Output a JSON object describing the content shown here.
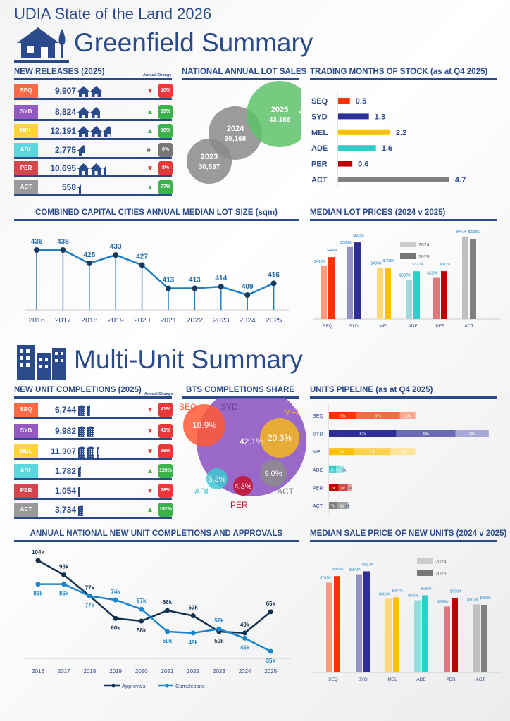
{
  "header": {
    "title": "UDIA State of the Land 2026",
    "greenfield_title": "Greenfield Summary",
    "multiunit_title": "Multi-Unit Summary"
  },
  "colors": {
    "brand": "#2b4a8c",
    "up": "#39b34a",
    "down": "#e8383a",
    "flat": "#777777"
  },
  "new_releases": {
    "title": "NEW RELEASES (2025)",
    "change_label": "Annual Change",
    "rows": [
      {
        "region": "SEQ",
        "value": "9,907",
        "icons": 2,
        "dir": "down",
        "change": "10%",
        "color": "#ff6a45"
      },
      {
        "region": "SYD",
        "value": "8,824",
        "icons": 1.8,
        "dir": "up",
        "change": "19%",
        "color": "#9459c0"
      },
      {
        "region": "MEL",
        "value": "12,191",
        "icons": 2.7,
        "dir": "up",
        "change": "16%",
        "color": "#ffd23f"
      },
      {
        "region": "ADL",
        "value": "2,775",
        "icons": 0.6,
        "dir": "flat",
        "change": "0%",
        "color": "#5bd8de"
      },
      {
        "region": "PER",
        "value": "10,695",
        "icons": 2.3,
        "dir": "down",
        "change": "8%",
        "color": "#d7444a"
      },
      {
        "region": "ACT",
        "value": "558",
        "icons": 0.3,
        "dir": "up",
        "change": "77%",
        "color": "#9a9a9a"
      }
    ]
  },
  "lot_sales": {
    "title": "NATIONAL ANNUAL LOT SALES",
    "bubbles": [
      {
        "year": "2023",
        "value": "30,837",
        "color": "#8a8a8a"
      },
      {
        "year": "2024",
        "value": "39,168",
        "color": "#8a8a8a"
      },
      {
        "year": "2025",
        "value": "43,186",
        "color": "#5ec26a",
        "trend": "up"
      }
    ]
  },
  "months_stock": {
    "title": "TRADING MONTHS OF STOCK (as at Q4 2025)",
    "rows": [
      {
        "region": "SEQ",
        "value": 0.5,
        "label": "0.5",
        "color": "#ff3300"
      },
      {
        "region": "SYD",
        "value": 1.3,
        "label": "1.3",
        "color": "#2e2e99"
      },
      {
        "region": "MEL",
        "value": 2.2,
        "label": "2.2",
        "color": "#ffc000"
      },
      {
        "region": "ADE",
        "value": 1.6,
        "label": "1.6",
        "color": "#33cccc"
      },
      {
        "region": "PER",
        "value": 0.6,
        "label": "0.6",
        "color": "#c00000"
      },
      {
        "region": "ACT",
        "value": 4.7,
        "label": "4.7",
        "color": "#808080"
      }
    ]
  },
  "lot_size": {
    "title": "COMBINED CAPITAL CITIES ANNUAL MEDIAN LOT SIZE (sqm)"
  },
  "lot_prices": {
    "title": "MEDIAN LOT PRICES (2024 v 2025)"
  },
  "unit_completions": {
    "title": "NEW UNIT COMPLETIONS (2025)",
    "change_label": "Annual Change",
    "rows": [
      {
        "region": "SEQ",
        "value": "6,744",
        "icons": 1.4,
        "dir": "down",
        "change": "41%",
        "color": "#ff6a45"
      },
      {
        "region": "SYD",
        "value": "9,982",
        "icons": 2,
        "dir": "down",
        "change": "41%",
        "color": "#9459c0"
      },
      {
        "region": "MEL",
        "value": "11,307",
        "icons": 2.3,
        "dir": "down",
        "change": "16%",
        "color": "#ffd23f"
      },
      {
        "region": "ADL",
        "value": "1,782",
        "icons": 0.4,
        "dir": "up",
        "change": "120%",
        "color": "#5bd8de"
      },
      {
        "region": "PER",
        "value": "1,054",
        "icons": 0.25,
        "dir": "down",
        "change": "26%",
        "color": "#d7444a"
      },
      {
        "region": "ACT",
        "value": "3,734",
        "icons": 0.7,
        "dir": "up",
        "change": "162%",
        "color": "#9a9a9a"
      }
    ]
  },
  "bts": {
    "title": "BTS COMPLETIONS SHARE",
    "items": [
      {
        "region": "SYD",
        "share": "42.1%",
        "color": "#8a4fbf"
      },
      {
        "region": "SEQ",
        "share": "18.9%",
        "color": "#ff5a36"
      },
      {
        "region": "MEL",
        "share": "20.3%",
        "color": "#f5b71f"
      },
      {
        "region": "ADL",
        "share": "5.3%",
        "color": "#3cc8d0"
      },
      {
        "region": "PER",
        "share": "4.3%",
        "color": "#c8102e"
      },
      {
        "region": "ACT",
        "share": "9.0%",
        "color": "#8c8c8c"
      }
    ]
  },
  "pipeline": {
    "title": "UNITS PIPELINE (as at Q4 2025)"
  },
  "unit_approvals": {
    "title": "ANNUAL NATIONAL NEW UNIT COMPLETIONS AND APPROVALS"
  },
  "unit_prices": {
    "title": "MEDIAN SALE PRICE OF NEW UNITS (2024 v 2025)"
  },
  "chart_data": [
    {
      "id": "lot_size",
      "type": "line",
      "title": "COMBINED CAPITAL CITIES ANNUAL MEDIAN LOT SIZE (sqm)",
      "x": [
        "2016",
        "2017",
        "2018",
        "2019",
        "2020",
        "2021",
        "2022",
        "2023",
        "2024",
        "2025"
      ],
      "values": [
        436,
        436,
        428,
        433,
        427,
        413,
        413,
        414,
        409,
        416
      ],
      "color": "#1f7fc2"
    },
    {
      "id": "lot_prices",
      "type": "bar",
      "title": "MEDIAN LOT PRICES (2024 v 2025)",
      "categories": [
        "SEQ",
        "SYD",
        "MEL",
        "ADE",
        "PER",
        "ACT"
      ],
      "series": [
        {
          "name": "2024",
          "values": [
            417,
            568,
            403,
            307,
            325,
            652
          ],
          "labels": [
            "$417K",
            "$568K",
            "$403K",
            "$307K",
            "$325K",
            "$652K"
          ],
          "colors": [
            "#ff9980",
            "#9490c8",
            "#ffd978",
            "#90e0e0",
            "#e07880",
            "#c0c0c0"
          ],
          "legend_color": "#cccccc"
        },
        {
          "name": "2025",
          "values": [
            488,
            605,
            405,
            377,
            377,
            633
          ],
          "labels": [
            "$488K",
            "$605K",
            "$405K",
            "$377K",
            "$377K",
            "$633K"
          ],
          "colors": [
            "#ff3300",
            "#2e2e99",
            "#ffc000",
            "#33cccc",
            "#c00000",
            "#808080"
          ],
          "legend_color": "#777777"
        }
      ]
    },
    {
      "id": "pipeline",
      "type": "bar",
      "title": "UNITS PIPELINE (as at Q4 2025)",
      "categories": [
        "SEQ",
        "SYD",
        "MEL",
        "ADE",
        "PER",
        "ACT"
      ],
      "series": [
        {
          "values": [
            23,
            57,
            21,
            6,
            8,
            7
          ]
        },
        {
          "values": [
            37,
            50,
            31,
            4,
            8,
            8
          ]
        },
        {
          "values": [
            13,
            28,
            21,
            3,
            3,
            2
          ]
        }
      ],
      "colors": [
        [
          "#ff3300",
          "#ff6a45",
          "#ffa590"
        ],
        [
          "#2e2e99",
          "#6a6ab8",
          "#a8a8d8"
        ],
        [
          "#ffc000",
          "#ffd04a",
          "#ffe398"
        ],
        [
          "#33cccc",
          "#70dcdc",
          "#a8eaea"
        ],
        [
          "#c00000",
          "#d84a4a",
          "#eaa0a0"
        ],
        [
          "#808080",
          "#a0a0a0",
          "#c8c8c8"
        ]
      ]
    },
    {
      "id": "unit_approvals",
      "type": "line",
      "title": "ANNUAL NATIONAL NEW UNIT COMPLETIONS AND APPROVALS",
      "x": [
        "2016",
        "2017",
        "2018",
        "2019",
        "2020",
        "2021",
        "2022",
        "2023",
        "2024",
        "2025"
      ],
      "series": [
        {
          "name": "Approvals",
          "values": [
            104,
            93,
            77,
            60,
            58,
            66,
            62,
            50,
            49,
            65
          ],
          "color": "#10304f"
        },
        {
          "name": "Completions",
          "values": [
            86,
            86,
            77,
            74,
            67,
            50,
            49,
            52,
            45,
            35
          ],
          "color": "#1a85cc"
        }
      ]
    },
    {
      "id": "unit_prices",
      "type": "bar",
      "title": "MEDIAN SALE PRICE OF NEW UNITS (2024 v 2025)",
      "categories": [
        "SEQ",
        "SYD",
        "MEL",
        "ADE",
        "PER",
        "ACT"
      ],
      "series": [
        {
          "name": "2024",
          "values": [
            797,
            872,
            654,
            640,
            585,
            603
          ],
          "labels": [
            "$797K",
            "$872K",
            "$654K",
            "$640K",
            "$585K",
            "$603K"
          ],
          "colors": [
            "#ff9980",
            "#9490c8",
            "#ffd978",
            "#90e0e0",
            "#e07880",
            "#c0c0c0"
          ],
          "legend_color": "#cccccc"
        },
        {
          "name": "2025",
          "values": [
            855,
            897,
            667,
            685,
            660,
            600
          ],
          "labels": [
            "$855K",
            "$897K",
            "$667K",
            "$685K",
            "$660K",
            "$600K"
          ],
          "colors": [
            "#ff3300",
            "#2e2e99",
            "#ffc000",
            "#33cccc",
            "#c00000",
            "#808080"
          ],
          "legend_color": "#777777"
        }
      ]
    }
  ]
}
